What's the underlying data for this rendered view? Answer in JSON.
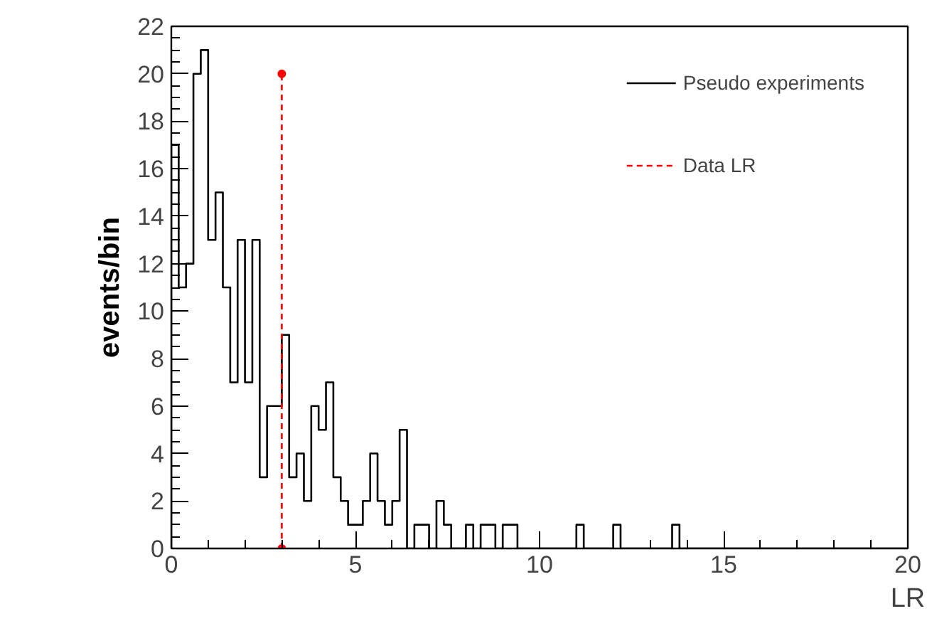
{
  "chart_data": {
    "type": "histogram",
    "xlabel": "LR",
    "ylabel": "events/bin",
    "bins": [
      0,
      0.2,
      0.4,
      0.6,
      0.8,
      1,
      1.2,
      1.4,
      1.6,
      1.8,
      2,
      2.2,
      2.4,
      2.6,
      2.8,
      3,
      3.2,
      3.4,
      3.6,
      3.8,
      4,
      4.2,
      4.4,
      4.6,
      4.8,
      5,
      5.2,
      5.4,
      5.6,
      5.8,
      6,
      6.2,
      6.4,
      6.6,
      6.8,
      7,
      7.2,
      7.4,
      7.6,
      7.8,
      8,
      8.2,
      8.4,
      8.6,
      8.8,
      9,
      9.2,
      9.4,
      9.6,
      9.8,
      10,
      10.2,
      10.4,
      10.6,
      10.8,
      11,
      11.2,
      11.4,
      11.6,
      11.8,
      12,
      12.2,
      12.4,
      12.6,
      12.8,
      13,
      13.2,
      13.4,
      13.6,
      13.8,
      14,
      14.2,
      14.4,
      14.6,
      14.8,
      15,
      15.2,
      15.4,
      15.6,
      15.8,
      16,
      16.2,
      16.4,
      16.6,
      16.8,
      17,
      17.2,
      17.4,
      17.6,
      17.8,
      18,
      18.2,
      18.4,
      18.6,
      18.8,
      19,
      19.2,
      19.4,
      19.6,
      19.8,
      20
    ],
    "series": [
      {
        "name": "Pseudo experiments",
        "color": "#000000",
        "values": [
          17,
          11,
          12,
          20,
          21,
          13,
          15,
          11,
          7,
          13,
          7,
          13,
          3,
          6,
          6,
          9,
          3,
          4,
          2,
          6,
          5,
          7,
          3,
          2,
          1,
          1,
          2,
          4,
          2,
          1,
          2,
          5,
          0,
          1,
          1,
          0,
          2,
          1,
          0,
          0,
          1,
          0,
          1,
          1,
          0,
          1,
          1,
          0,
          0,
          0,
          0,
          0,
          0,
          0,
          0,
          1,
          0,
          0,
          0,
          0,
          1,
          0,
          0,
          0,
          0,
          0,
          0,
          0,
          1,
          0,
          0,
          0,
          0,
          0,
          0,
          0,
          0,
          0,
          0,
          0,
          0,
          0,
          0,
          0,
          0,
          0,
          0,
          0,
          0,
          0,
          0,
          0,
          0,
          0,
          0,
          0,
          0,
          0,
          0,
          0
        ]
      },
      {
        "name": "Data LR",
        "type": "line",
        "x": [
          3,
          3
        ],
        "values": [
          0,
          20
        ],
        "color": "#ff0000",
        "line_style": "dashed",
        "marker": "circle"
      }
    ],
    "xlim": [
      0,
      20
    ],
    "xticks": [
      0,
      5,
      10,
      15,
      20
    ],
    "ylim": [
      0,
      22
    ],
    "yticks": [
      0,
      2,
      4,
      6,
      8,
      10,
      12,
      14,
      16,
      18,
      20,
      22
    ],
    "grid": false,
    "legend": "top right"
  }
}
